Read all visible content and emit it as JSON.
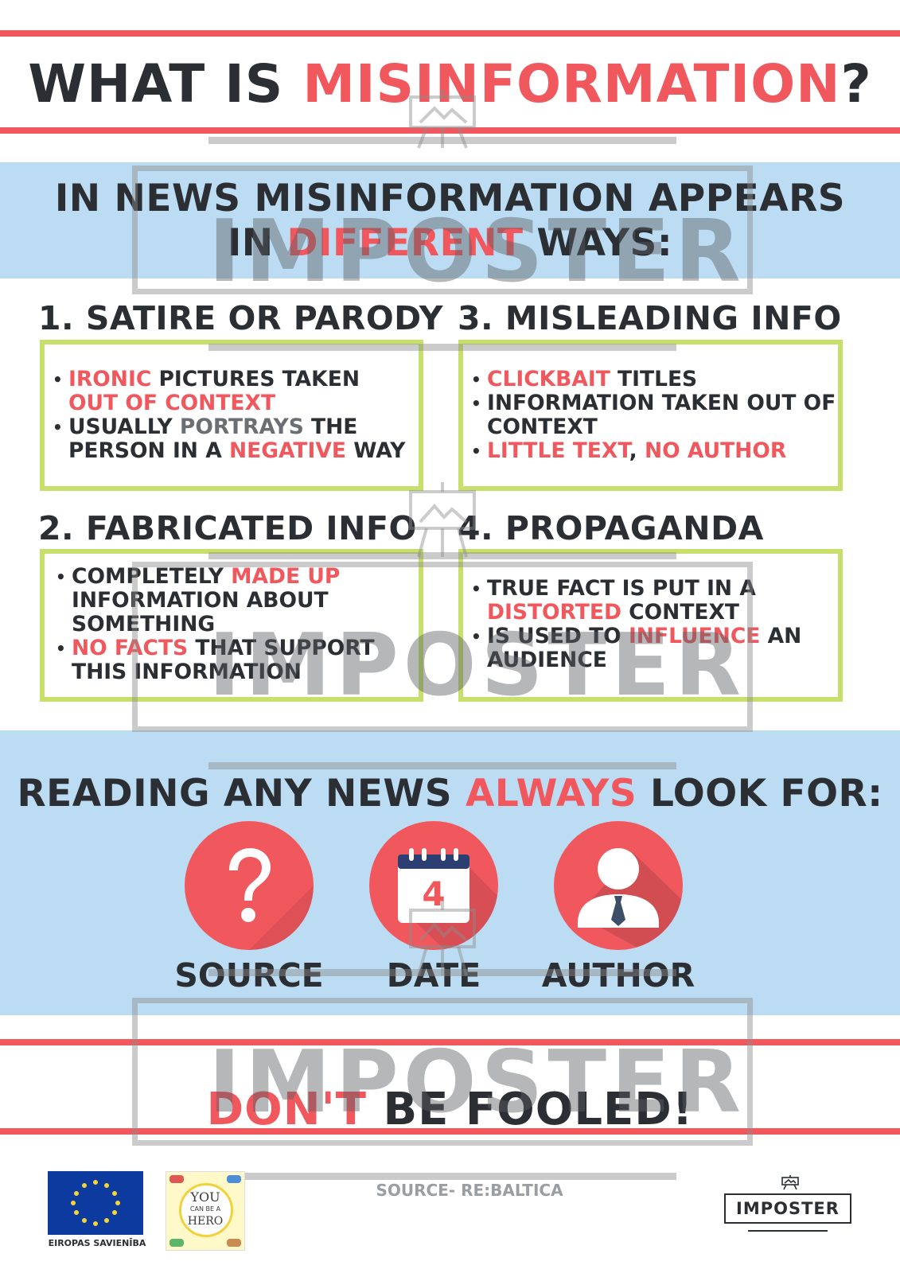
{
  "header": {
    "title_pre": "WHAT IS ",
    "title_highlight": "MISINFORMATION",
    "title_post": "?"
  },
  "intro": {
    "line1": "IN NEWS MISINFORMATION APPEARS",
    "line2_pre": "IN ",
    "line2_highlight": "DIFFERENT",
    "line2_post": " WAYS:"
  },
  "sections": {
    "satire": {
      "heading": "1. SATIRE OR PARODY",
      "b1_a": "IRONIC",
      "b1_b": " PICTURES TAKEN ",
      "b1_c": "OUT OF CONTEXT",
      "b2_a": "USUALLY ",
      "b2_b": "PORTRAYS",
      "b2_c": " THE PERSON IN A ",
      "b2_d": "NEGATIVE",
      "b2_e": " WAY"
    },
    "misleading": {
      "heading": "3. MISLEADING INFO",
      "b1_a": "CLICKBAIT",
      "b1_b": " TITLES",
      "b2": "INFORMATION TAKEN OUT OF CONTEXT",
      "b3_a": "LITTLE TEXT",
      "b3_b": ", ",
      "b3_c": "NO AUTHOR"
    },
    "fabricated": {
      "heading": "2. FABRICATED INFO",
      "b1_a": "COMPLETELY ",
      "b1_b": "MADE UP",
      "b1_c": " INFORMATION ABOUT SOMETHING",
      "b2_a": "NO FACTS",
      "b2_b": " THAT SUPPORT THIS INFORMATION"
    },
    "propaganda": {
      "heading": "4. PROPAGANDA",
      "b1_a": "TRUE FACT IS PUT IN A ",
      "b1_b": "DISTORTED",
      "b1_c": " CONTEXT",
      "b2_a": "IS USED TO ",
      "b2_b": "INFLUENCE",
      "b2_c": " AN AUDIENCE"
    }
  },
  "look_for": {
    "heading_pre": "READING ANY NEWS ",
    "heading_highlight": "ALWAYS",
    "heading_post": " LOOK FOR:",
    "items": [
      {
        "label": "SOURCE",
        "icon": "question-mark-icon"
      },
      {
        "label": "DATE",
        "icon": "calendar-icon",
        "day": "4"
      },
      {
        "label": "AUTHOR",
        "icon": "person-icon"
      }
    ]
  },
  "slogan": {
    "highlight": "DON'T",
    "rest": " BE FOOLED!"
  },
  "footer": {
    "eu_label": "EIROPAS SAVIENĪBA",
    "hero_text_1": "YOU",
    "hero_text_2": "CAN BE A",
    "hero_text_3": "HERO",
    "source": "SOURCE- RE:BALTICA",
    "brand": "IMPOSTER"
  },
  "watermark": {
    "text": "IMPOSTER"
  },
  "colors": {
    "accent_red": "#f0585e",
    "band_blue": "#bcdcf3",
    "box_green": "#c6e06b",
    "text_dark": "#2b2f33",
    "calendar_navy": "#2d3e73"
  }
}
